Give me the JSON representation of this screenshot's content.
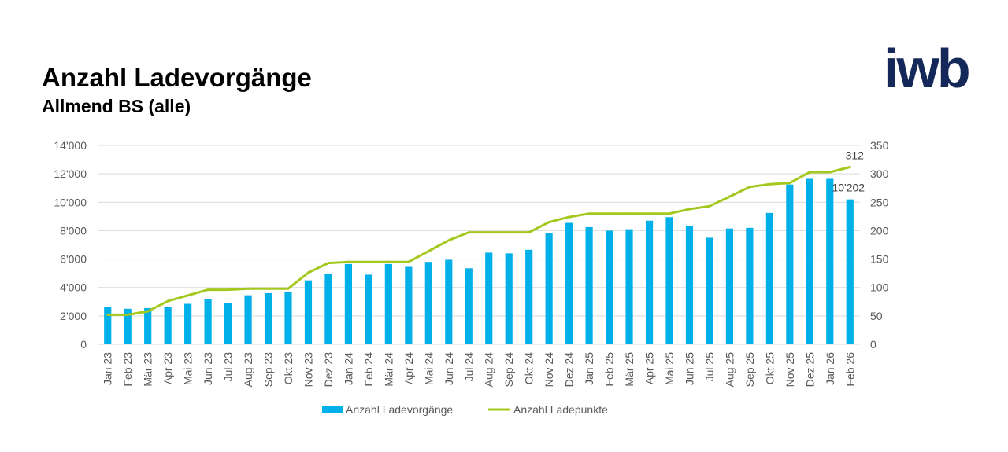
{
  "header": {
    "title": "Anzahl Ladevorgänge",
    "subtitle": "Allmend BS (alle)",
    "logo": "IWB"
  },
  "colors": {
    "bar": "#00b0e8",
    "line": "#a5c81e",
    "grid": "#d9d9d9",
    "axis_text": "#595959",
    "logo": "#14285a"
  },
  "chart_data": {
    "type": "bar",
    "categories": [
      "Jan 23",
      "Feb 23",
      "Mär 23",
      "Apr 23",
      "Mai 23",
      "Jun 23",
      "Jul 23",
      "Aug 23",
      "Sep 23",
      "Okt 23",
      "Nov 23",
      "Dez 23",
      "Jan 24",
      "Feb 24",
      "Mär 24",
      "Apr 24",
      "Mai 24",
      "Jun 24",
      "Jul 24",
      "Aug 24",
      "Sep 24",
      "Okt 24",
      "Nov 24",
      "Dez 24",
      "Jan 25",
      "Feb 25",
      "Mär 25",
      "Apr 25",
      "Mai 25",
      "Jun 25",
      "Jul 25",
      "Aug 25",
      "Sep 25",
      "Okt 25",
      "Nov 25",
      "Dez 25",
      "Jan 26",
      "Feb 26"
    ],
    "series": [
      {
        "name": "Anzahl Ladevorgänge",
        "type": "bar",
        "axis": "left",
        "values": [
          2650,
          2500,
          2550,
          2600,
          2850,
          3200,
          2900,
          3450,
          3600,
          3700,
          4500,
          4950,
          5650,
          4900,
          5650,
          5450,
          5800,
          5950,
          5350,
          6450,
          6400,
          6650,
          7800,
          8550,
          8250,
          8000,
          8100,
          8700,
          8950,
          8350,
          7500,
          8150,
          8200,
          9250,
          11250,
          11650,
          11650,
          10202
        ]
      },
      {
        "name": "Anzahl Ladepunkte",
        "type": "line",
        "axis": "right",
        "values": [
          52,
          52,
          58,
          76,
          86,
          96,
          96,
          98,
          98,
          98,
          126,
          143,
          145,
          145,
          145,
          145,
          164,
          183,
          197,
          197,
          197,
          197,
          215,
          224,
          230,
          230,
          230,
          230,
          230,
          238,
          243,
          260,
          277,
          282,
          284,
          303,
          303,
          312
        ]
      }
    ],
    "data_labels": [
      {
        "series": "Anzahl Ladevorgänge",
        "category": "Feb 26",
        "text": "10'202"
      },
      {
        "series": "Anzahl Ladepunkte",
        "category": "Feb 26",
        "text": "312"
      }
    ],
    "y_left": {
      "min": 0,
      "max": 14000,
      "ticks": [
        "0",
        "2'000",
        "4'000",
        "6'000",
        "8'000",
        "10'000",
        "12'000",
        "14'000"
      ]
    },
    "y_right": {
      "min": 0,
      "max": 350,
      "ticks": [
        "0",
        "50",
        "100",
        "150",
        "200",
        "250",
        "300",
        "350"
      ]
    },
    "grid": true,
    "legend_position": "bottom"
  }
}
